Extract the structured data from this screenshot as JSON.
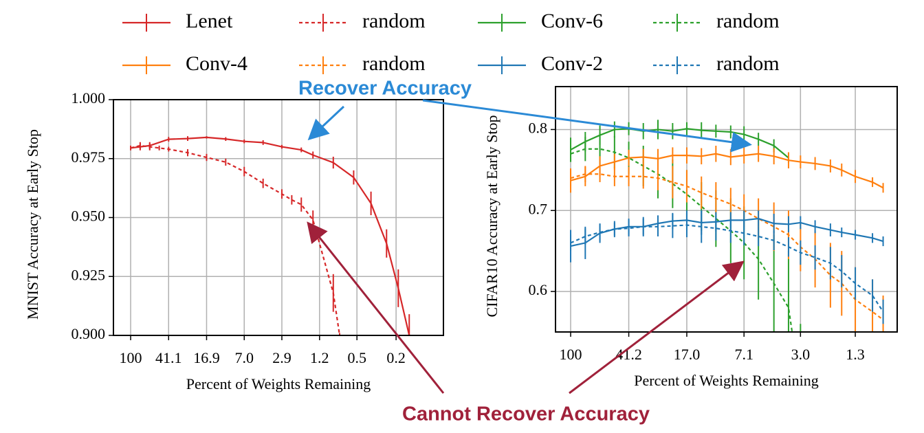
{
  "annotations": [
    "Recover Accuracy",
    "Cannot Recover Accuracy"
  ],
  "chart_data": [
    {
      "type": "line",
      "xlabel": "Percent of Weights Remaining",
      "ylabel": "MNIST Accuracy at Early Stop",
      "xscale": "log",
      "xlim": [
        149.6,
        0.066
      ],
      "ylim": [
        0.9,
        1.0
      ],
      "grid": true,
      "xticks": [
        100,
        41.1,
        16.9,
        {
          "value": 7.0,
          "label": "7.0"
        },
        2.9,
        1.2,
        0.5,
        0.2
      ],
      "yticks": [
        {
          "value": 0.9,
          "label": "0.900"
        },
        {
          "value": 0.925,
          "label": "0.925"
        },
        {
          "value": 0.95,
          "label": "0.950"
        },
        {
          "value": 0.975,
          "label": "0.975"
        },
        {
          "value": 1.0,
          "label": "1.000"
        }
      ],
      "series": [
        {
          "name": "Lenet",
          "color": "#d62728",
          "dashed": false,
          "x": [
            100,
            80,
            64,
            41.1,
            26.3,
            16.9,
            10.8,
            7.0,
            4.5,
            2.9,
            1.84,
            1.4,
            0.87,
            0.54,
            0.36,
            0.25,
            0.19,
            0.147
          ],
          "values": [
            0.9795,
            0.98,
            0.9805,
            0.9832,
            0.9835,
            0.984,
            0.9833,
            0.9823,
            0.9818,
            0.98,
            0.9787,
            0.9765,
            0.9733,
            0.967,
            0.956,
            0.939,
            0.92,
            0.9
          ],
          "errors": [
            0.001,
            0.0015,
            0.0015,
            0.001,
            0.001,
            0.0005,
            0.0008,
            0.0008,
            0.001,
            0.0008,
            0.001,
            0.0015,
            0.0025,
            0.003,
            0.005,
            0.006,
            0.008,
            0.009
          ]
        },
        {
          "name": "random",
          "color": "#d62728",
          "dashed": true,
          "x": [
            100,
            80,
            64,
            51.2,
            41.1,
            26.3,
            16.9,
            10.8,
            7.0,
            4.5,
            2.9,
            2.3,
            1.84,
            1.4,
            0.87,
            0.75
          ],
          "values": [
            0.9795,
            0.9805,
            0.98,
            0.9795,
            0.979,
            0.9775,
            0.9755,
            0.9735,
            0.9695,
            0.9645,
            0.96,
            0.9575,
            0.9555,
            0.949,
            0.918,
            0.9
          ],
          "errors": [
            0.0008,
            0.0015,
            0.0015,
            0.001,
            0.001,
            0.0015,
            0.0015,
            0.0015,
            0.002,
            0.002,
            0.002,
            0.002,
            0.003,
            0.004,
            0.008,
            0.001
          ]
        }
      ]
    },
    {
      "type": "line",
      "xlabel": "Percent of Weights Remaining",
      "ylabel": "CIFAR10 Accuracy at Early Stop",
      "xscale": "log",
      "xlim": [
        126,
        0.686
      ],
      "ylim": [
        0.55,
        0.853
      ],
      "grid": true,
      "xticks": [
        100,
        41.2,
        {
          "value": 17.0,
          "label": "17.0"
        },
        7.1,
        {
          "value": 3.0,
          "label": "3.0"
        },
        1.3
      ],
      "yticks": [
        0.6,
        0.7,
        0.8
      ],
      "series": [
        {
          "name": "Conv-6",
          "color": "#2ca02c",
          "dashed": false,
          "x": [
            100,
            80,
            64,
            51.2,
            41.2,
            33,
            26.4,
            21.1,
            17.0,
            13.6,
            10.9,
            8.7,
            7.1,
            5.7,
            4.5,
            3.6
          ],
          "values": [
            0.775,
            0.785,
            0.793,
            0.8,
            0.801,
            0.798,
            0.8,
            0.798,
            0.801,
            0.799,
            0.798,
            0.797,
            0.794,
            0.788,
            0.78,
            0.765
          ],
          "errors": [
            0.015,
            0.012,
            0.012,
            0.01,
            0.008,
            0.01,
            0.012,
            0.01,
            0.008,
            0.01,
            0.008,
            0.008,
            0.01,
            0.008,
            0.008,
            0.006
          ]
        },
        {
          "name": "random",
          "color": "#2ca02c",
          "dashed": true,
          "x": [
            100,
            80,
            64,
            51.2,
            41.2,
            33,
            26.4,
            21.1,
            17.0,
            13.6,
            10.9,
            8.7,
            7.1,
            5.7,
            4.5,
            3.6,
            3.0
          ],
          "values": [
            0.77,
            0.776,
            0.776,
            0.772,
            0.765,
            0.755,
            0.745,
            0.733,
            0.72,
            0.705,
            0.69,
            0.675,
            0.66,
            0.64,
            0.61,
            0.58,
            0.48
          ],
          "errors": [
            0.01,
            0.015,
            0.02,
            0.02,
            0.02,
            0.025,
            0.03,
            0.03,
            0.03,
            0.03,
            0.035,
            0.04,
            0.045,
            0.05,
            0.06,
            0.07,
            0.08
          ]
        },
        {
          "name": "Conv-4",
          "color": "#ff7f0e",
          "dashed": false,
          "x": [
            100,
            80,
            64,
            51.2,
            41.2,
            33,
            26.4,
            21.1,
            17.0,
            13.6,
            10.9,
            8.7,
            7.1,
            5.7,
            4.5,
            3.6,
            3.0,
            2.4,
            1.9,
            1.6,
            1.3,
            1.0,
            0.85
          ],
          "values": [
            0.737,
            0.742,
            0.755,
            0.76,
            0.765,
            0.766,
            0.764,
            0.768,
            0.768,
            0.767,
            0.77,
            0.766,
            0.768,
            0.77,
            0.767,
            0.762,
            0.76,
            0.758,
            0.755,
            0.75,
            0.742,
            0.735,
            0.728
          ],
          "errors": [
            0.015,
            0.012,
            0.012,
            0.01,
            0.01,
            0.01,
            0.012,
            0.01,
            0.01,
            0.01,
            0.01,
            0.01,
            0.01,
            0.01,
            0.01,
            0.01,
            0.008,
            0.008,
            0.008,
            0.008,
            0.008,
            0.006,
            0.006
          ]
        },
        {
          "name": "random",
          "color": "#ff7f0e",
          "dashed": true,
          "x": [
            100,
            80,
            64,
            51.2,
            41.2,
            33,
            26.4,
            21.1,
            17.0,
            13.6,
            10.9,
            8.7,
            7.1,
            5.7,
            4.5,
            3.6,
            3.0,
            2.4,
            1.9,
            1.6,
            1.3,
            1.0,
            0.85
          ],
          "values": [
            0.74,
            0.745,
            0.745,
            0.742,
            0.742,
            0.742,
            0.74,
            0.735,
            0.73,
            0.722,
            0.715,
            0.708,
            0.7,
            0.69,
            0.68,
            0.67,
            0.655,
            0.64,
            0.62,
            0.61,
            0.59,
            0.575,
            0.565
          ],
          "errors": [
            0.01,
            0.01,
            0.01,
            0.012,
            0.012,
            0.015,
            0.015,
            0.02,
            0.02,
            0.02,
            0.02,
            0.02,
            0.02,
            0.025,
            0.03,
            0.03,
            0.03,
            0.035,
            0.04,
            0.04,
            0.04,
            0.04,
            0.03
          ]
        },
        {
          "name": "Conv-2",
          "color": "#1f77b4",
          "dashed": false,
          "x": [
            100,
            80,
            64,
            51.2,
            41.2,
            33,
            26.4,
            21.1,
            17.0,
            13.6,
            10.9,
            8.7,
            7.1,
            5.7,
            4.5,
            3.6,
            3.0,
            2.4,
            1.9,
            1.6,
            1.3,
            1.0,
            0.85
          ],
          "values": [
            0.656,
            0.66,
            0.672,
            0.677,
            0.68,
            0.68,
            0.684,
            0.687,
            0.688,
            0.685,
            0.686,
            0.688,
            0.688,
            0.69,
            0.684,
            0.683,
            0.685,
            0.68,
            0.676,
            0.673,
            0.67,
            0.666,
            0.662
          ],
          "errors": [
            0.02,
            0.02,
            0.012,
            0.01,
            0.01,
            0.012,
            0.01,
            0.01,
            0.012,
            0.015,
            0.012,
            0.01,
            0.012,
            0.01,
            0.012,
            0.01,
            0.008,
            0.008,
            0.008,
            0.006,
            0.006,
            0.006,
            0.006
          ]
        },
        {
          "name": "random",
          "color": "#1f77b4",
          "dashed": true,
          "x": [
            100,
            80,
            64,
            51.2,
            41.2,
            33,
            26.4,
            21.1,
            17.0,
            13.6,
            10.9,
            8.7,
            7.1,
            5.7,
            4.5,
            3.6,
            3.0,
            2.4,
            1.9,
            1.6,
            1.3,
            1.0,
            0.85
          ],
          "values": [
            0.66,
            0.668,
            0.673,
            0.677,
            0.678,
            0.68,
            0.68,
            0.681,
            0.682,
            0.68,
            0.678,
            0.675,
            0.672,
            0.668,
            0.663,
            0.655,
            0.648,
            0.642,
            0.635,
            0.625,
            0.61,
            0.595,
            0.575
          ],
          "errors": [
            0.01,
            0.01,
            0.01,
            0.008,
            0.01,
            0.01,
            0.012,
            0.015,
            0.015,
            0.02,
            0.015,
            0.015,
            0.015,
            0.012,
            0.012,
            0.012,
            0.015,
            0.015,
            0.02,
            0.02,
            0.02,
            0.02,
            0.015
          ]
        }
      ]
    }
  ]
}
